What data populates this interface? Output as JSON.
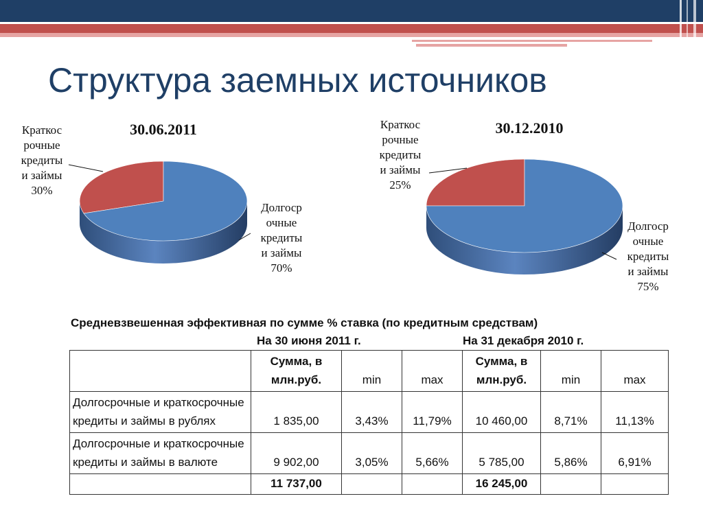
{
  "slide": {
    "title": "Структура заемных источников",
    "subtitle": "Средневзвешенная эффективная по сумме % ставка (по кредитным средствам)"
  },
  "chart_data": [
    {
      "type": "pie",
      "title": "30.06.2011",
      "slices": [
        {
          "label": "Краткосрочные кредиты и займы",
          "label_lines": [
            "Краткос",
            "рочные",
            "кредиты",
            "и займы"
          ],
          "percent_text": "30%",
          "value": 30,
          "color": "#c0504d"
        },
        {
          "label": "Долгосрочные кредиты и займы",
          "label_lines": [
            "Долгоср",
            "очные",
            "кредиты",
            "и займы"
          ],
          "percent_text": "70%",
          "value": 70,
          "color": "#4f81bd"
        }
      ]
    },
    {
      "type": "pie",
      "title": "30.12.2010",
      "slices": [
        {
          "label": "Краткосрочные кредиты и займы",
          "label_lines": [
            "Краткос",
            "рочные",
            "кредиты",
            "и займы"
          ],
          "percent_text": "25%",
          "value": 25,
          "color": "#c0504d"
        },
        {
          "label": "Долгосрочные кредиты и займы",
          "label_lines": [
            "Долгоср",
            "очные",
            "кредиты",
            "и займы"
          ],
          "percent_text": "75%",
          "value": 75,
          "color": "#4f81bd"
        }
      ]
    }
  ],
  "table": {
    "period_1": "На 30 июня 2011 г.",
    "period_2": "На 31 декабря 2010 г.",
    "header": {
      "sum_line1": "Сумма, в",
      "sum_line2": "млн.руб.",
      "min": "min",
      "max": "max"
    },
    "rows": [
      {
        "label": "Долгосрочные и краткосрочные кредиты и займы в рублях",
        "sum_1": "1 835,00",
        "min_1": "3,43%",
        "max_1": "11,79%",
        "sum_2": "10 460,00",
        "min_2": "8,71%",
        "max_2": "11,13%"
      },
      {
        "label": "Долгосрочные и краткосрочные кредиты и займы в валюте",
        "sum_1": "9 902,00",
        "min_1": "3,05%",
        "max_1": "5,66%",
        "sum_2": "5 785,00",
        "min_2": "5,86%",
        "max_2": "6,91%"
      }
    ],
    "total": {
      "sum_1": "11 737,00",
      "sum_2": "16 245,00"
    }
  },
  "colors": {
    "title": "#1f3f66",
    "band_dark": "#1f3f66",
    "band_red": "#c0504d",
    "band_pink": "#e6a4a3",
    "short_term": "#c0504d",
    "long_term": "#4f81bd"
  }
}
